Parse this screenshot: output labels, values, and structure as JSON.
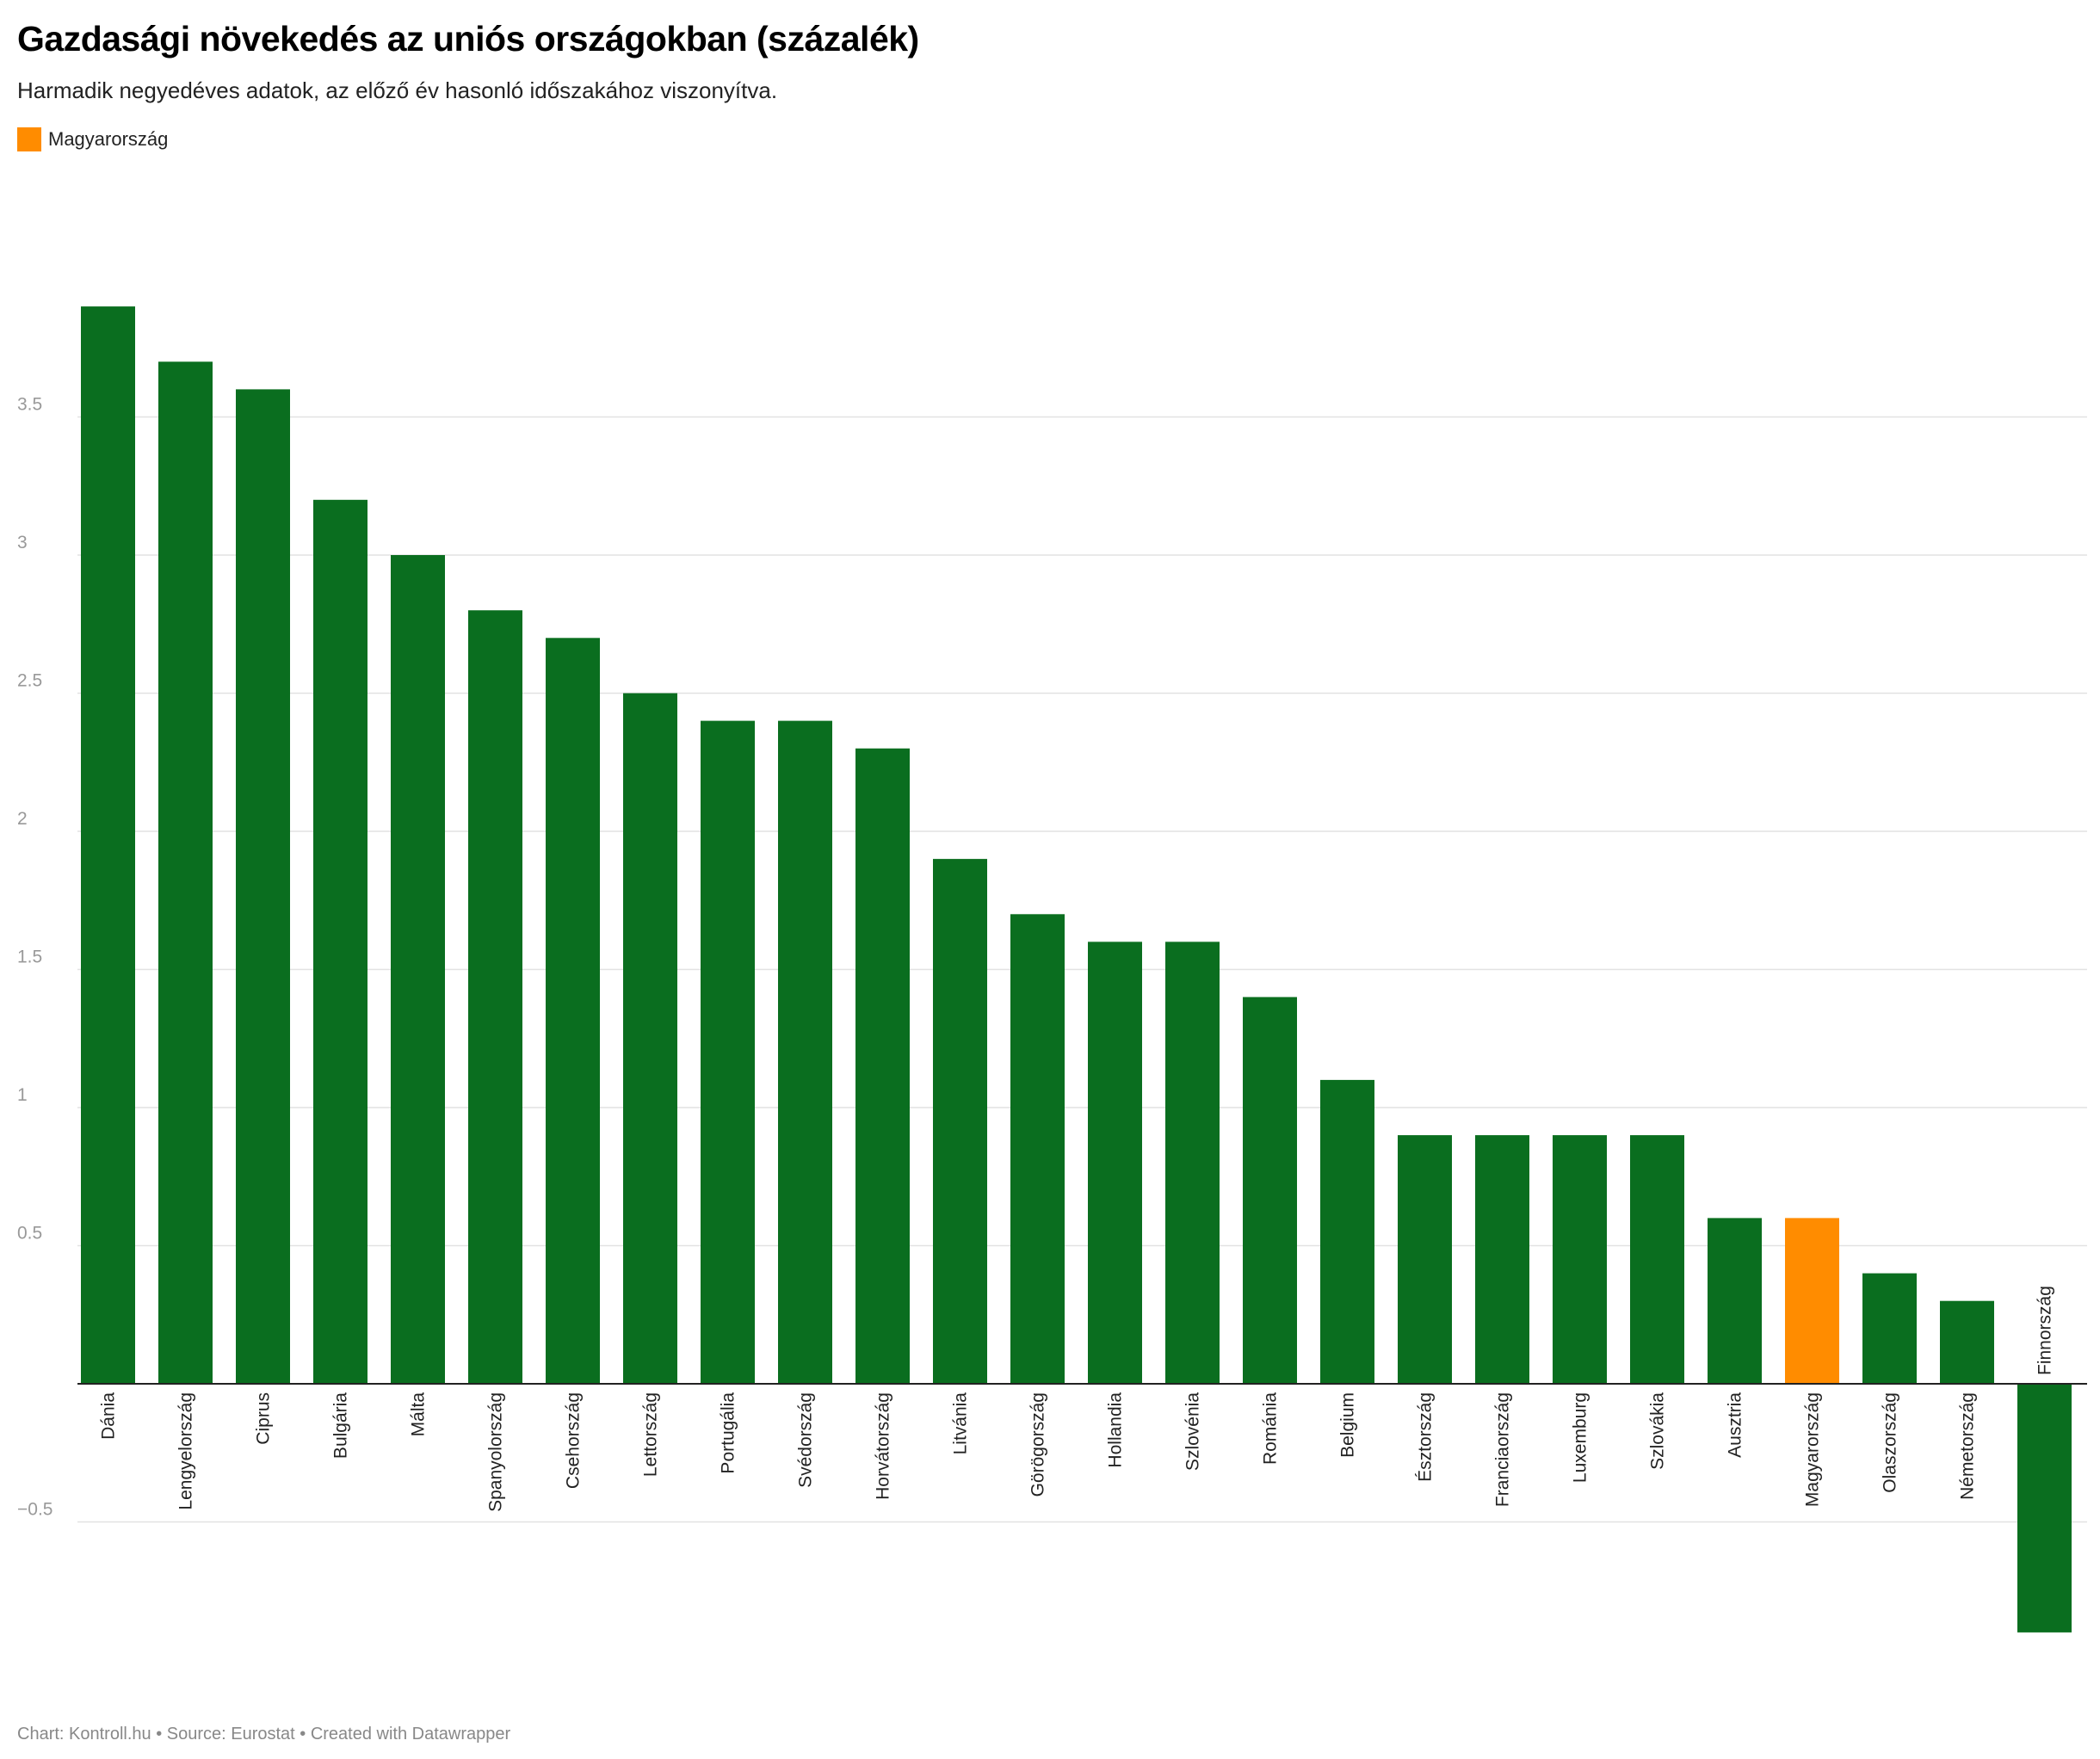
{
  "title": "Gazdasági növekedés az uniós országokban (százalék)",
  "subtitle": "Harmadik negyedéves adatok, az előző év hasonló időszakához viszonyítva.",
  "legend": {
    "label": "Magyarország",
    "color": "#ff8c00"
  },
  "footer": "Chart: Kontroll.hu • Source: Eurostat • Created with Datawrapper",
  "chart_data": {
    "type": "bar",
    "categories": [
      "Dánia",
      "Lengyelország",
      "Ciprus",
      "Bulgária",
      "Málta",
      "Spanyolország",
      "Csehország",
      "Lettország",
      "Portugália",
      "Svédország",
      "Horvátország",
      "Litvánia",
      "Görögország",
      "Hollandia",
      "Szlovénia",
      "Románia",
      "Belgium",
      "Észtország",
      "Franciaország",
      "Luxemburg",
      "Szlovákia",
      "Ausztria",
      "Magyarország",
      "Olaszország",
      "Németország",
      "Finnország"
    ],
    "values": [
      3.9,
      3.7,
      3.6,
      3.2,
      3.0,
      2.8,
      2.7,
      2.5,
      2.4,
      2.4,
      2.3,
      1.9,
      1.7,
      1.6,
      1.6,
      1.4,
      1.1,
      0.9,
      0.9,
      0.9,
      0.9,
      0.6,
      0.6,
      0.4,
      0.3,
      -0.9
    ],
    "highlight": "Magyarország",
    "colors": {
      "default": "#0a6e1f",
      "highlight": "#ff8c00"
    },
    "yticks": [
      -0.5,
      0.5,
      1,
      1.5,
      2,
      2.5,
      3,
      3.5
    ],
    "ytick_labels": [
      "−0.5",
      "0.5",
      "1",
      "1.5",
      "2",
      "2.5",
      "3",
      "3.5"
    ],
    "ylim": [
      -0.95,
      4.0
    ],
    "grid": true,
    "xlabel": "",
    "ylabel": ""
  }
}
